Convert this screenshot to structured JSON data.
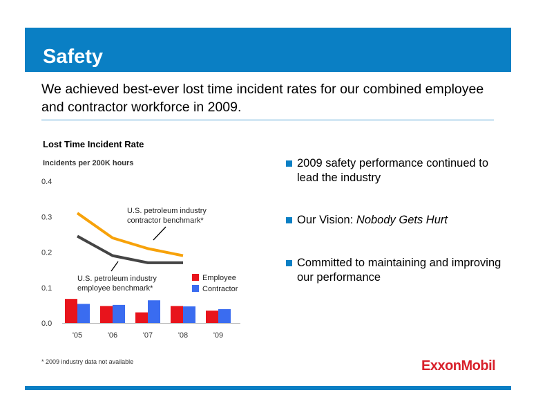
{
  "slide": {
    "title": "Safety",
    "subtitle": "We achieved best-ever lost time incident rates for our combined employee and contractor workforce in 2009.",
    "footnote": "* 2009 industry data not available",
    "logo_text": "ExxonMobil"
  },
  "colors": {
    "accent_blue": "#0a7fc4",
    "employee": "#e8141c",
    "contractor": "#3a6cf0",
    "contractor_benchmark": "#f7a20a",
    "employee_benchmark": "#444444"
  },
  "bullets": [
    {
      "text": "2009 safety performance continued to lead the industry"
    },
    {
      "prefix": "Our Vision: ",
      "emph": "Nobody Gets Hurt"
    },
    {
      "text": "Committed to maintaining and improving our performance"
    }
  ],
  "chart_data": {
    "type": "bar",
    "title": "Lost Time Incident Rate",
    "ylabel": "Incidents per 200K hours",
    "categories": [
      "'05",
      "'06",
      "'07",
      "'08",
      "'09"
    ],
    "ylim": [
      0,
      0.4
    ],
    "yticks": [
      "0.0",
      "0.1",
      "0.2",
      "0.3",
      "0.4"
    ],
    "grid": false,
    "legend_position": "right",
    "series": [
      {
        "name": "Employee",
        "type": "bar",
        "values": [
          0.068,
          0.048,
          0.03,
          0.048,
          0.035
        ]
      },
      {
        "name": "Contractor",
        "type": "bar",
        "values": [
          0.054,
          0.051,
          0.064,
          0.047,
          0.039
        ]
      },
      {
        "name": "U.S. petroleum industry contractor benchmark*",
        "type": "line",
        "values": [
          0.31,
          0.24,
          0.21,
          0.19,
          null
        ]
      },
      {
        "name": "U.S. petroleum industry employee benchmark*",
        "type": "line",
        "values": [
          0.245,
          0.19,
          0.17,
          0.17,
          null
        ]
      }
    ],
    "annotations": {
      "contractor_benchmark": [
        "U.S. petroleum industry",
        "contractor benchmark*"
      ],
      "employee_benchmark": [
        "U.S. petroleum industry",
        "employee benchmark*"
      ]
    }
  }
}
